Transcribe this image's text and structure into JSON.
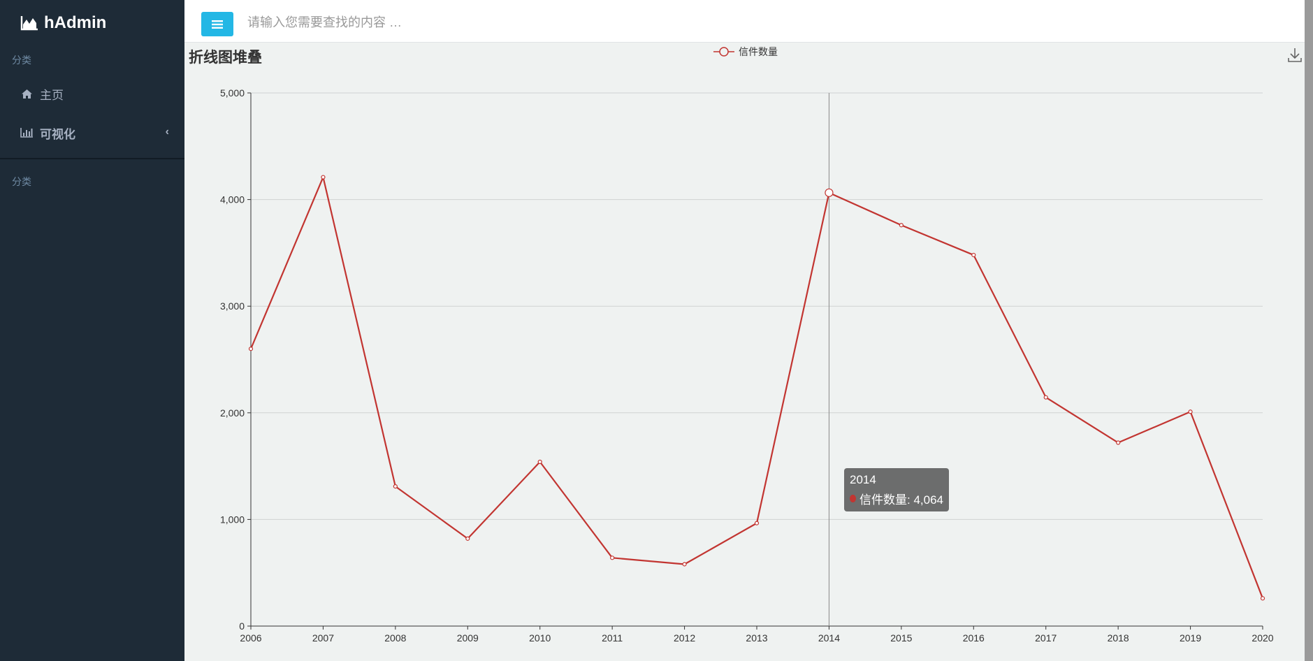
{
  "sidebar": {
    "brand": "hAdmin",
    "section1": "分类",
    "items": [
      {
        "label": "主页",
        "icon": "home-icon"
      },
      {
        "label": "可视化",
        "icon": "bar-chart-icon",
        "arrow": "‹"
      }
    ],
    "section2": "分类"
  },
  "topbar": {
    "search_placeholder": "请输入您需要查找的内容 …"
  },
  "colors": {
    "sidebar_bg": "#1e2b37",
    "accent": "#23b7e5",
    "series": "#c23531",
    "plot_bg": "#eff2f1"
  },
  "tooltip": {
    "title": "2014",
    "label": "信件数量: 4,064"
  },
  "chart_data": {
    "type": "line",
    "title": "折线图堆叠",
    "legend": [
      "信件数量"
    ],
    "legend_position": "top-center",
    "x": [
      "2006",
      "2007",
      "2008",
      "2009",
      "2010",
      "2011",
      "2012",
      "2013",
      "2014",
      "2015",
      "2016",
      "2017",
      "2018",
      "2019",
      "2020"
    ],
    "series": [
      {
        "name": "信件数量",
        "values": [
          2600,
          4210,
          1310,
          820,
          1540,
          640,
          580,
          965,
          4064,
          3760,
          3480,
          2145,
          1720,
          2010,
          260
        ]
      }
    ],
    "ylim": [
      0,
      5000
    ],
    "yticks": [
      "0",
      "1,000",
      "2,000",
      "3,000",
      "4,000",
      "5,000"
    ],
    "grid": true,
    "highlight_index": 8
  }
}
